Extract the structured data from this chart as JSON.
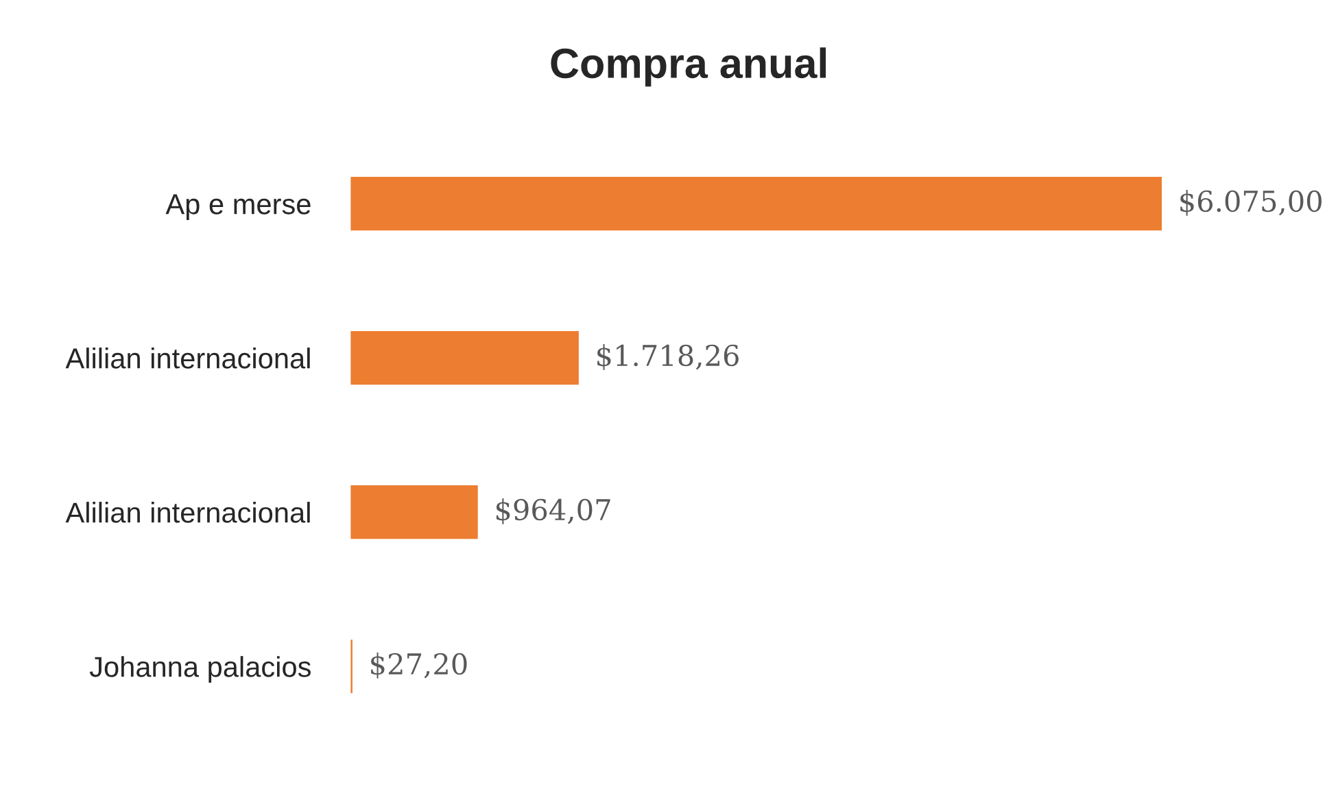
{
  "chart_data": {
    "type": "bar",
    "orientation": "horizontal",
    "title": "Compra anual",
    "categories": [
      "Ap e merse",
      "Alilian internacional",
      "Alilian internacional",
      "Johanna palacios"
    ],
    "values": [
      6075.0,
      1718.26,
      964.07,
      27.2
    ],
    "value_labels": [
      "$6.075,00",
      "$1.718,26",
      "$964,07",
      "$27,20"
    ],
    "color": "#ed7d31",
    "grid": false,
    "legend": false
  }
}
